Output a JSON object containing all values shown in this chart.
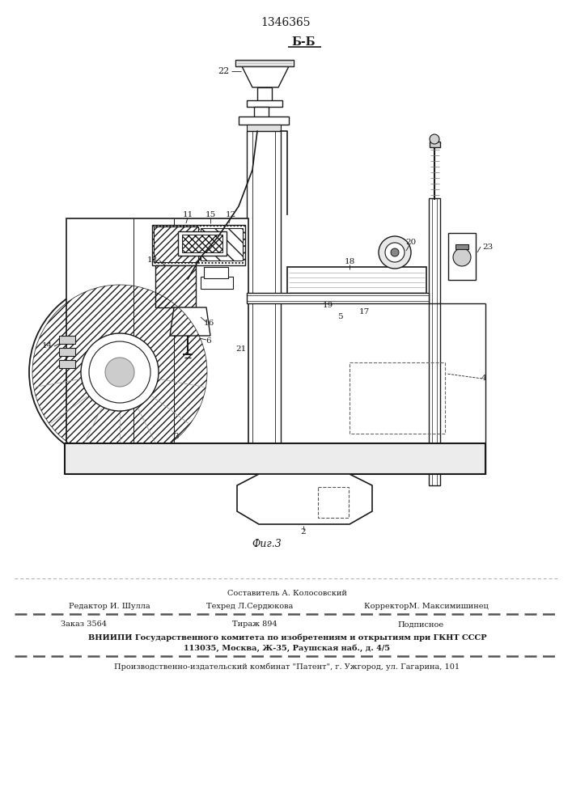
{
  "patent_number": "1346365",
  "section_label": "Б-Б",
  "fig_label": "Фиг.3",
  "line_color": "#1a1a1a",
  "footer": {
    "compiler": "Составитель А. Колосовский",
    "editor": "Редактор И. Шулла",
    "techred": "Техред Л.Сердюкова",
    "corrector": "КорректорМ. Максимишинец",
    "order": "Заказ 3564",
    "tirazh": "Тираж 894",
    "podpisnoe": "Подписное",
    "vnipi_line1": "ВНИИПИ Государственного комитета по изобретениям и открытиям при ГКНТ СССР",
    "vnipi_line2": "113035, Москва, Ж-35, Раушская наб., д. 4/5",
    "print_line": "Производственно-издательский комбинат \"Патент\", г. Ужгород, ул. Гагарина, 101"
  }
}
